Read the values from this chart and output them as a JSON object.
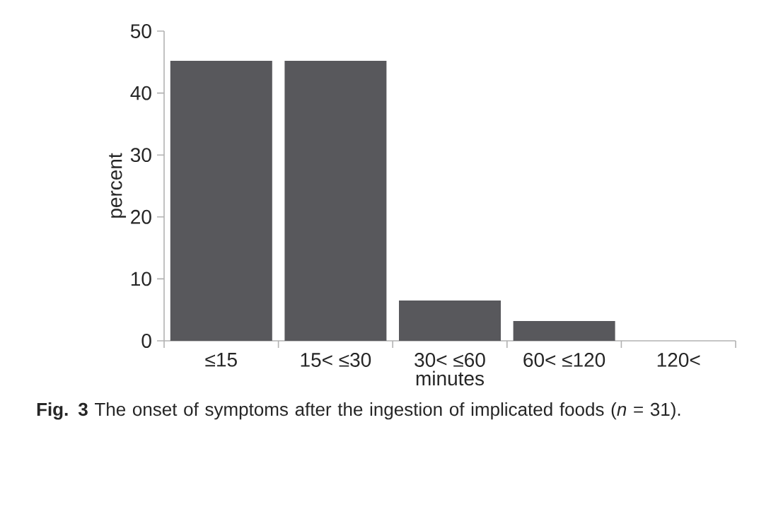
{
  "chart_data": {
    "type": "bar",
    "categories": [
      "≤15",
      "15< ≤30",
      "30< ≤60",
      "60< ≤120",
      "120<"
    ],
    "values": [
      45.2,
      45.2,
      6.5,
      3.2,
      0
    ],
    "color": "#58585c",
    "xlabel": "minutes",
    "ylabel": "percent",
    "ylim": [
      0,
      50
    ],
    "yticks": [
      0,
      10,
      20,
      30,
      40,
      50
    ],
    "annotations": [
      "**Fig. 3**  The onset of symptoms after the ingestion of implicated foods (*n* = 31)."
    ]
  }
}
